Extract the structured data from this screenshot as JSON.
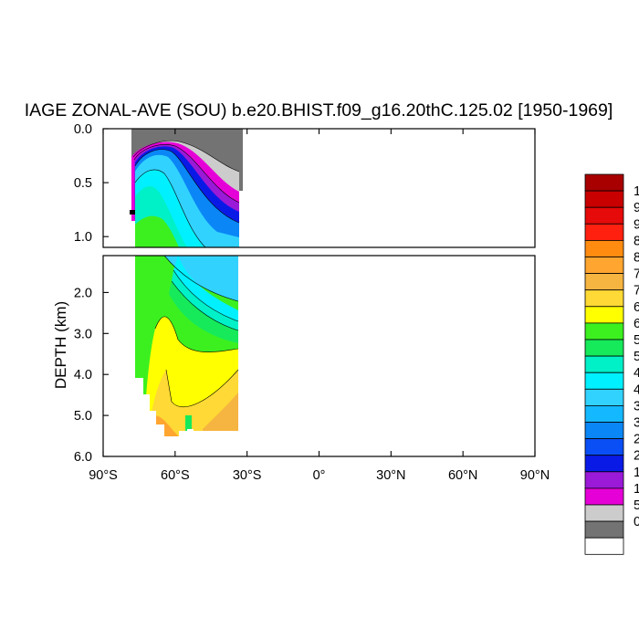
{
  "chart_data": {
    "type": "contour",
    "title": "IAGE ZONAL-AVE (SOU) b.e20.BHIST.f09_g16.20thC.125.02 [1950-1969]",
    "ylabel": "DEPTH (km)",
    "xlabel": "",
    "xlim": [
      -90,
      90
    ],
    "upper_panel": {
      "ylim": [
        0.0,
        1.1
      ],
      "yticks": [
        "0.0",
        "0.5",
        "1.0"
      ],
      "ytick_values": [
        0.0,
        0.5,
        1.0
      ]
    },
    "lower_panel": {
      "ylim": [
        1.1,
        6.0
      ],
      "yticks": [
        "2.0",
        "3.0",
        "4.0",
        "5.0",
        "6.0"
      ],
      "ytick_values": [
        2.0,
        3.0,
        4.0,
        5.0,
        6.0
      ]
    },
    "xticks": [
      "90°S",
      "60°S",
      "30°S",
      "0°",
      "30°N",
      "60°N",
      "90°N"
    ],
    "xtick_values": [
      -90,
      -60,
      -30,
      0,
      30,
      60,
      90
    ],
    "data_extent_lat": [
      -78,
      -34
    ],
    "colorbar": {
      "colors": [
        "#ffffff",
        "#737373",
        "#cccccc",
        "#e600d8",
        "#9a1ad8",
        "#0a1ae6",
        "#0a4ef6",
        "#0a86f6",
        "#14b8ff",
        "#32d2ff",
        "#00f0ff",
        "#00f0c8",
        "#16ea5a",
        "#3cf020",
        "#ffff00",
        "#ffd935",
        "#f6b440",
        "#ffa530",
        "#ff8c10",
        "#ff2010",
        "#e60a0a",
        "#c80000",
        "#a80000"
      ],
      "labels_visible": [
        "1",
        "9",
        "9",
        "8",
        "8",
        "7",
        "7",
        "6",
        "6",
        "5",
        "5",
        "4",
        "4",
        "3",
        "3",
        "2",
        "2",
        "1",
        "1",
        "5",
        "0"
      ]
    }
  }
}
